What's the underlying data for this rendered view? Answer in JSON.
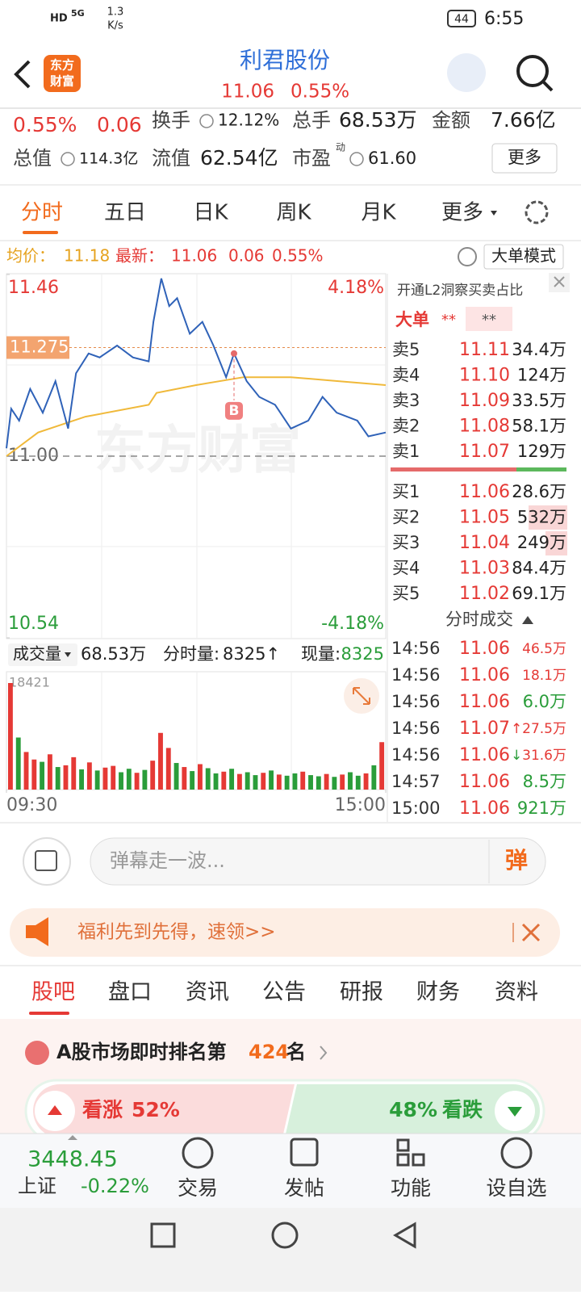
{
  "status_bar": {
    "hd": "HD",
    "network": "5G",
    "speed_value": "1.3",
    "speed_unit": "K/s",
    "battery": "44",
    "time": "6:55"
  },
  "header": {
    "logo_top": "东方",
    "logo_bottom": "财富",
    "title": "利君股份",
    "price": "11.06",
    "change": "0.55%"
  },
  "quote": {
    "pct": "0.55%",
    "change": "0.06",
    "items": [
      {
        "label": "换手",
        "value": "12.12%"
      },
      {
        "label": "总手",
        "value": "68.53万"
      },
      {
        "label": "金额",
        "value": "7.66亿"
      },
      {
        "label": "总值",
        "value": "114.3亿"
      },
      {
        "label": "流值",
        "value": "62.54亿"
      },
      {
        "label": "市盈",
        "sup": "动",
        "value": "61.60"
      }
    ],
    "more": "更多"
  },
  "tabs": [
    "分时",
    "五日",
    "日K",
    "周K",
    "月K",
    "更多"
  ],
  "info_bar": {
    "avg_label": "均价：",
    "avg": "11.18",
    "latest_label": "最新：",
    "latest": "11.06",
    "change": "0.06",
    "pct": "0.55%",
    "mode": "大单模式"
  },
  "intraday": {
    "type": "line",
    "watermark": "东方财富",
    "xlim": [
      0,
      240
    ],
    "xticks": [
      {
        "value": 0,
        "label": "09:30"
      },
      {
        "value": 240,
        "label": "15:00"
      }
    ],
    "ylim": [
      10.54,
      11.46
    ],
    "yticks": [
      11.46,
      {
        "value": 11,
        "label": "11.00"
      },
      10.54
    ],
    "right_top": "4.18%",
    "right_bottom": "-4.18%",
    "ref_line": 11.275,
    "buy_marker": {
      "label": "B",
      "x": 144,
      "value": 11.26
    },
    "series": [
      {
        "color": "#2f62b8",
        "x": [
          0,
          3,
          8,
          15,
          23,
          31,
          39,
          44,
          52,
          59,
          70,
          80,
          90,
          93,
          98,
          103,
          108,
          116,
          124,
          131,
          139,
          144,
          152,
          160,
          170,
          180,
          191,
          200,
          209,
          222,
          229,
          240
        ],
        "values": [
          11.02,
          11.12,
          11.09,
          11.17,
          11.11,
          11.19,
          11.07,
          11.21,
          11.26,
          11.25,
          11.28,
          11.25,
          11.24,
          11.34,
          11.45,
          11.38,
          11.4,
          11.31,
          11.34,
          11.28,
          11.2,
          11.26,
          11.19,
          11.15,
          11.13,
          11.07,
          11.09,
          11.15,
          11.11,
          11.09,
          11.05,
          11.06
        ]
      },
      {
        "color": "#f0b93a",
        "x": [
          0,
          20,
          50,
          90,
          95,
          120,
          150,
          180,
          210,
          240
        ],
        "values": [
          11.0,
          11.06,
          11.1,
          11.13,
          11.16,
          11.18,
          11.2,
          11.2,
          11.19,
          11.18
        ]
      }
    ]
  },
  "volume": {
    "label": "成交量",
    "total": "68.53万",
    "period_label": "分时量:",
    "period": "8325↑",
    "current_label": "现量:",
    "current": "8325",
    "max_label": 18421,
    "ylim": [
      0,
      18421
    ],
    "values": [
      18421,
      9000,
      6500,
      5200,
      4800,
      6100,
      3900,
      4200,
      5600,
      3500,
      4700,
      3300,
      3800,
      4100,
      3000,
      3600,
      2900,
      3400,
      5000,
      9800,
      7200,
      4600,
      3900,
      3200,
      4400,
      3700,
      2800,
      3100,
      3600,
      2700,
      3000,
      2500,
      2900,
      3300,
      2600,
      2400,
      2800,
      3100,
      2500,
      2300,
      2700,
      2200,
      2600,
      3000,
      2400,
      2800,
      4200,
      8200
    ],
    "colors": [
      "#e53935",
      "#2a9d3a",
      "#e53935",
      "#e53935",
      "#2a9d3a",
      "#e53935",
      "#2a9d3a",
      "#e53935",
      "#e53935",
      "#2a9d3a",
      "#e53935",
      "#2a9d3a",
      "#e53935",
      "#e53935",
      "#2a9d3a",
      "#2a9d3a",
      "#e53935",
      "#2a9d3a",
      "#e53935",
      "#e53935",
      "#e53935",
      "#2a9d3a",
      "#e53935",
      "#2a9d3a",
      "#e53935",
      "#2a9d3a",
      "#2a9d3a",
      "#e53935",
      "#2a9d3a",
      "#e53935",
      "#2a9d3a",
      "#2a9d3a",
      "#e53935",
      "#2a9d3a",
      "#e53935",
      "#2a9d3a",
      "#2a9d3a",
      "#e53935",
      "#2a9d3a",
      "#2a9d3a",
      "#e53935",
      "#2a9d3a",
      "#e53935",
      "#2a9d3a",
      "#2a9d3a",
      "#e53935",
      "#2a9d3a",
      "#e53935"
    ]
  },
  "order_book": {
    "promo": "开通L2洞察买卖占比",
    "big_label": "大单",
    "big_buy": "**",
    "big_sell": "**",
    "asks": [
      [
        "卖5",
        "11.11",
        "34.4万"
      ],
      [
        "卖4",
        "11.10",
        "124万"
      ],
      [
        "卖3",
        "11.09",
        "33.5万"
      ],
      [
        "卖2",
        "11.08",
        "58.1万"
      ],
      [
        "卖1",
        "11.07",
        "129万"
      ]
    ],
    "bids": [
      [
        "买1",
        "11.06",
        "28.6万"
      ],
      [
        "买2",
        "11.05",
        "532万"
      ],
      [
        "买3",
        "11.04",
        "249万"
      ],
      [
        "买4",
        "11.03",
        "84.4万"
      ],
      [
        "买5",
        "11.02",
        "69.1万"
      ]
    ]
  },
  "trades": {
    "title": "分时成交",
    "rows": [
      {
        "time": "14:56",
        "price": "11.06",
        "volume": "46.5万",
        "color": "#e53935"
      },
      {
        "time": "14:56",
        "price": "11.06",
        "volume": "18.1万",
        "color": "#e53935"
      },
      {
        "time": "14:56",
        "price": "11.06",
        "volume": "6.0万",
        "color": "#2a9d3a"
      },
      {
        "time": "14:56",
        "price": "11.07",
        "flag": "↑",
        "volume": "27.5万",
        "color": "#e53935"
      },
      {
        "time": "14:56",
        "price": "11.06",
        "flag": "↓",
        "volume": "31.6万",
        "color": "#e53935"
      },
      {
        "time": "14:57",
        "price": "11.06",
        "volume": "8.5万",
        "color": "#2a9d3a"
      },
      {
        "time": "15:00",
        "price": "11.06",
        "volume": "921万",
        "color": "#2a9d3a"
      }
    ]
  },
  "comment": {
    "placeholder": "弹幕走一波...",
    "button": "弹"
  },
  "banner": {
    "text": "福利先到先得，速领>>"
  },
  "section_tabs": [
    "股吧",
    "盘口",
    "资讯",
    "公告",
    "研报",
    "财务",
    "资料"
  ],
  "ranking": {
    "prefix": "A股市场即时排名第",
    "rank": "424",
    "suffix": "名"
  },
  "sentiment": {
    "up_label": "看涨",
    "up": "52%",
    "down": "48%",
    "down_label": "看跌"
  },
  "index": {
    "value": "3448.45",
    "name": "上证",
    "change": "-0.22%"
  },
  "nav": [
    "交易",
    "发帖",
    "功能",
    "设自选"
  ]
}
